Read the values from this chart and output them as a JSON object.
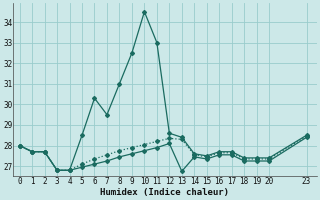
{
  "xlabel": "Humidex (Indice chaleur)",
  "background_color": "#cce8e8",
  "grid_color": "#99cccc",
  "line_color": "#1a6b60",
  "xlim": [
    -0.5,
    23.8
  ],
  "ylim": [
    26.5,
    34.9
  ],
  "yticks": [
    27,
    28,
    29,
    30,
    31,
    32,
    33,
    34
  ],
  "xticks": [
    0,
    1,
    2,
    3,
    4,
    5,
    6,
    7,
    8,
    9,
    10,
    11,
    12,
    13,
    14,
    15,
    16,
    17,
    18,
    19,
    20,
    23
  ],
  "s1_x": [
    0,
    1,
    2,
    3,
    4,
    5,
    6,
    7,
    8,
    9,
    10,
    11,
    12,
    13,
    14,
    15,
    16,
    17,
    18,
    19,
    20,
    23
  ],
  "s1_y": [
    28.0,
    27.7,
    27.7,
    26.8,
    26.8,
    28.5,
    30.3,
    29.5,
    31.0,
    32.5,
    34.5,
    33.0,
    28.6,
    28.4,
    27.6,
    27.5,
    27.7,
    27.7,
    27.4,
    27.4,
    27.4,
    28.5
  ],
  "s2_x": [
    0,
    1,
    2,
    3,
    4,
    5,
    6,
    7,
    8,
    9,
    10,
    11,
    12,
    13,
    14,
    15,
    16,
    17,
    18,
    19,
    20,
    23
  ],
  "s2_y": [
    28.0,
    27.7,
    27.7,
    26.8,
    26.8,
    27.1,
    27.35,
    27.55,
    27.75,
    27.9,
    28.05,
    28.2,
    28.35,
    28.3,
    27.55,
    27.45,
    27.65,
    27.65,
    27.35,
    27.35,
    27.35,
    28.45
  ],
  "s3_x": [
    0,
    1,
    2,
    3,
    4,
    5,
    6,
    7,
    8,
    9,
    10,
    11,
    12,
    13,
    14,
    15,
    16,
    17,
    18,
    19,
    20,
    23
  ],
  "s3_y": [
    28.0,
    27.7,
    27.7,
    26.8,
    26.8,
    26.95,
    27.1,
    27.25,
    27.45,
    27.6,
    27.75,
    27.9,
    28.1,
    26.75,
    27.45,
    27.35,
    27.55,
    27.55,
    27.25,
    27.25,
    27.25,
    28.4
  ]
}
